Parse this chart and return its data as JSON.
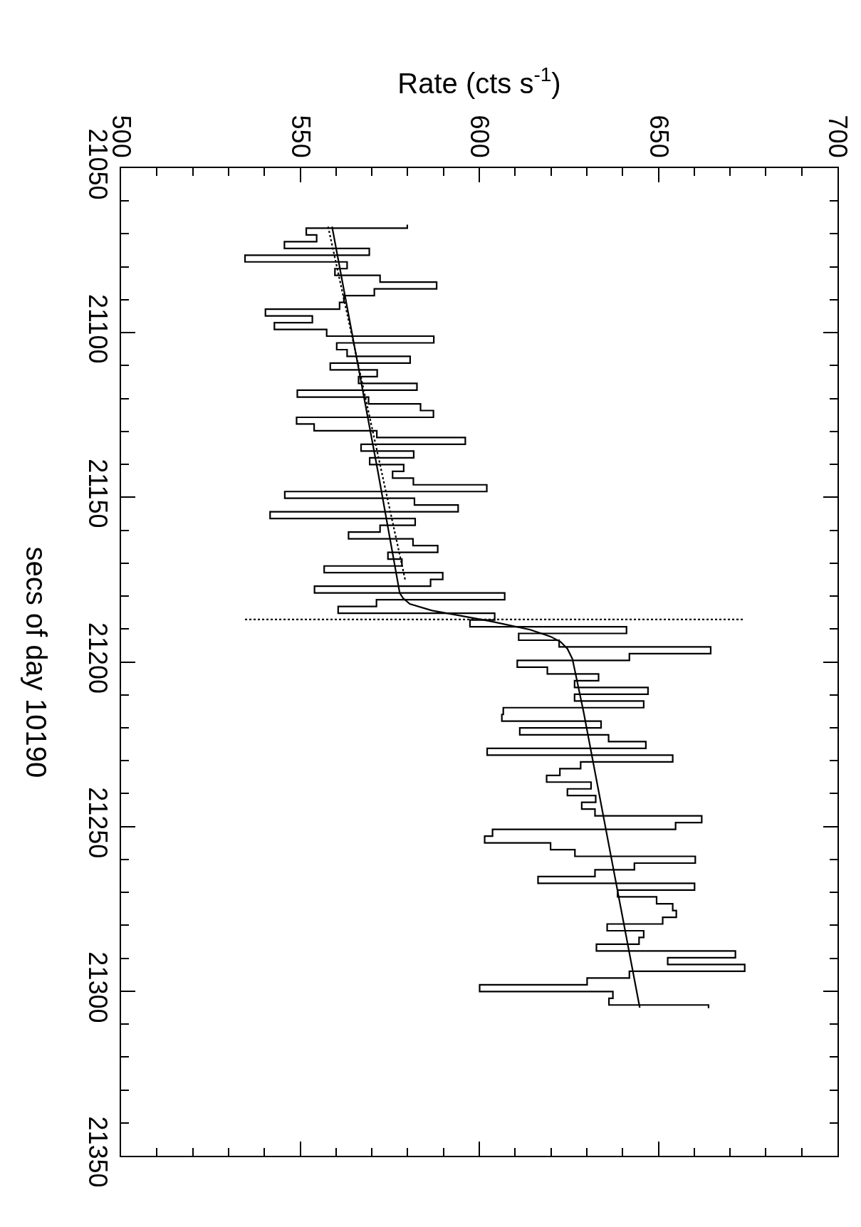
{
  "chart_data": {
    "type": "step",
    "xlabel": "Rate (cts s$^{-1}$)",
    "ylabel": "secs of day 10190",
    "xlim": [
      500,
      700
    ],
    "ylim": [
      21350,
      21050
    ],
    "xticks": [
      500,
      {
        "value": 510,
        "label": null
      },
      {
        "value": 520,
        "label": null
      },
      {
        "value": 530,
        "label": null
      },
      {
        "value": 540,
        "label": null
      },
      550,
      {
        "value": 560,
        "label": null
      },
      {
        "value": 570,
        "label": null
      },
      {
        "value": 580,
        "label": null
      },
      {
        "value": 590,
        "label": null
      },
      600,
      {
        "value": 610,
        "label": null
      },
      {
        "value": 620,
        "label": null
      },
      {
        "value": 630,
        "label": null
      },
      {
        "value": 640,
        "label": null
      },
      650,
      {
        "value": 660,
        "label": null
      },
      {
        "value": 670,
        "label": null
      },
      {
        "value": 680,
        "label": null
      },
      {
        "value": 690,
        "label": null
      },
      700
    ],
    "yticks": [
      21050,
      {
        "value": 21060,
        "label": null
      },
      {
        "value": 21070,
        "label": null
      },
      {
        "value": 21080,
        "label": null
      },
      {
        "value": 21090,
        "label": null
      },
      21100,
      {
        "value": 21110,
        "label": null
      },
      {
        "value": 21120,
        "label": null
      },
      {
        "value": 21130,
        "label": null
      },
      {
        "value": 21140,
        "label": null
      },
      21150,
      {
        "value": 21160,
        "label": null
      },
      {
        "value": 21170,
        "label": null
      },
      {
        "value": 21180,
        "label": null
      },
      {
        "value": 21190,
        "label": null
      },
      21200,
      {
        "value": 21210,
        "label": null
      },
      {
        "value": 21220,
        "label": null
      },
      {
        "value": 21230,
        "label": null
      },
      {
        "value": 21240,
        "label": null
      },
      21250,
      {
        "value": 21260,
        "label": null
      },
      {
        "value": 21270,
        "label": null
      },
      {
        "value": 21280,
        "label": null
      },
      {
        "value": 21290,
        "label": null
      },
      21300,
      {
        "value": 21310,
        "label": null
      },
      {
        "value": 21320,
        "label": null
      },
      {
        "value": 21330,
        "label": null
      },
      {
        "value": 21340,
        "label": null
      },
      21350
    ],
    "marker": "none",
    "series": [
      {
        "color": "#000000",
        "line_style": "solid",
        "values": [
          21067.2,
          21069.3,
          21071.3,
          21073.4,
          21075.4,
          21077.5,
          21079.5,
          21081.6,
          21083.6,
          21085.7,
          21087.7,
          21089.8,
          21091.8,
          21093.9,
          21095.9,
          21098.0,
          21100.0,
          21102.1,
          21104.1,
          21106.2,
          21108.2,
          21110.3,
          21112.3,
          21114.4,
          21116.4,
          21118.5,
          21120.6,
          21122.6,
          21124.7,
          21126.7,
          21128.8,
          21130.8,
          21132.9,
          21134.9,
          21137.0,
          21139.0,
          21141.1,
          21143.1,
          21145.2,
          21147.2,
          21149.3,
          21151.3,
          21153.4,
          21155.4,
          21157.5,
          21159.5,
          21161.6,
          21163.6,
          21165.7,
          21167.7,
          21169.8,
          21171.9,
          21173.9,
          21176.0,
          21178.0,
          21180.1,
          21182.1,
          21184.2,
          21186.2,
          21188.3,
          21190.3,
          21192.4,
          21194.4,
          21196.5,
          21198.5,
          21200.6,
          21202.6,
          21204.7,
          21206.7,
          21208.8,
          21210.8,
          21212.9,
          21214.9,
          21217.0,
          21219.0,
          21221.1,
          21223.2,
          21225.2,
          21227.3,
          21229.3,
          21231.4,
          21233.4,
          21235.5,
          21237.5,
          21239.6,
          21241.6,
          21243.7,
          21245.7,
          21247.8,
          21249.8,
          21251.9,
          21253.9,
          21256.0,
          21258.0,
          21260.1,
          21262.1,
          21264.2,
          21266.2,
          21268.3,
          21270.3,
          21272.4,
          21274.5,
          21276.5,
          21278.6,
          21280.6,
          21282.7,
          21284.7,
          21286.8,
          21288.8,
          21290.9,
          21292.9,
          21295.0,
          21297.0,
          21299.1,
          21301.1,
          21303.2,
          21305.2
        ],
        "x": [
          579.9,
          551.7,
          554.6,
          545.6,
          569.3,
          534.6,
          563.1,
          559.7,
          572.3,
          588.1,
          570.7,
          562.2,
          561.0,
          540.3,
          553.4,
          542.8,
          557.4,
          587.3,
          560.2,
          563.1,
          580.7,
          558.4,
          571.5,
          566.3,
          582.6,
          549.2,
          569.1,
          583.6,
          587.2,
          549.0,
          553.9,
          571.4,
          596.1,
          567.0,
          581.7,
          569.4,
          578.9,
          575.8,
          581.6,
          602.1,
          545.7,
          581.9,
          594.1,
          541.6,
          582.1,
          572.3,
          563.5,
          581.5,
          588.4,
          574.5,
          578.4,
          556.7,
          589.8,
          586.4,
          554.0,
          607.1,
          571.3,
          560.6,
          604.3,
          597.4,
          641.1,
          611.0,
          622.3,
          664.6,
          641.9,
          610.6,
          619.0,
          633.3,
          626.6,
          647.1,
          626.6,
          645.9,
          606.7,
          606.3,
          634.0,
          611.3,
          636.1,
          646.5,
          602.2,
          654.0,
          628.3,
          622.5,
          618.8,
          631.2,
          624.6,
          632.5,
          628.6,
          632.3,
          662.1,
          654.8,
          603.7,
          601.5,
          619.9,
          626.7,
          660.3,
          643.3,
          632.3,
          616.4,
          660.1,
          638.6,
          649.5,
          654.0,
          655.0,
          651.2,
          635.7,
          645.9,
          644.6,
          632.7,
          671.5,
          652.6,
          674.1,
          641.9,
          630.1,
          600.1,
          637.3,
          636.2,
          664.0
        ]
      },
      {
        "type": "line",
        "color": "#000000",
        "line_style": "dotted",
        "values": [
          21067.8,
          21175.5
        ],
        "x": [
          557.8,
          579.4
        ]
      },
      {
        "type": "line",
        "color": "#000000",
        "line_style": "solid",
        "values": [
          21067.8,
          21141.6,
          21179.1,
          21180.6,
          21182.4,
          21184.4,
          21185.7,
          21187.6,
          21190.2,
          21192.3,
          21193.9,
          21196.0,
          21199.1,
          21215.1,
          21305.0
        ],
        "x": [
          558.9,
          571.6,
          577.8,
          578.7,
          580.6,
          586.8,
          593.4,
          602.9,
          614.2,
          619.9,
          622.7,
          624.6,
          626.0,
          629.1,
          644.8
        ]
      },
      {
        "type": "line",
        "color": "#000000",
        "line_style": "dotted",
        "values": [
          21187.1,
          21187.1
        ],
        "x": [
          534.6,
          673.7
        ]
      }
    ]
  }
}
